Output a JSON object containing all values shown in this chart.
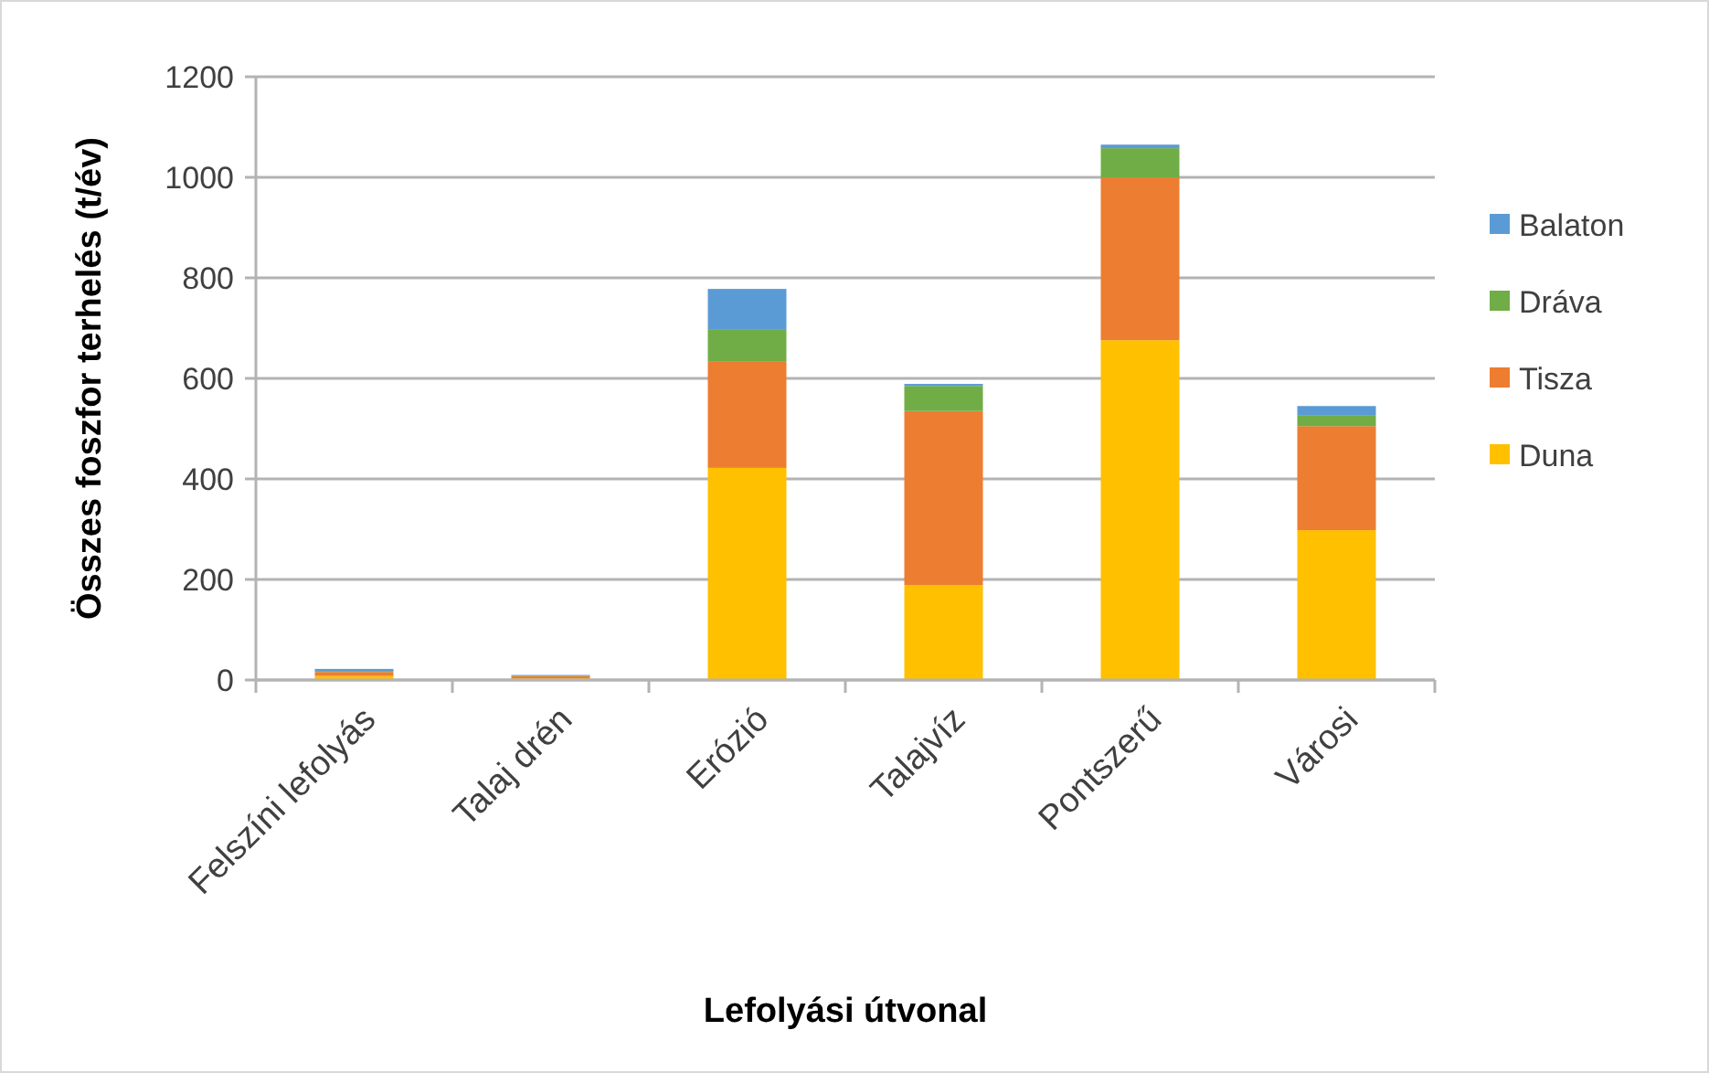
{
  "chart_data": {
    "type": "bar",
    "stacked": true,
    "xlabel": "Lefolyási útvonal",
    "ylabel": "Összes foszfor terhelés (t/év)",
    "categories": [
      "Felszíni lefolyás",
      "Talaj drén",
      "Erózió",
      "Talajvíz",
      "Pontszerű",
      "Városi"
    ],
    "series": [
      {
        "name": "Duna",
        "color": "#ffc000",
        "values": [
          8,
          3,
          422,
          189,
          676,
          298
        ]
      },
      {
        "name": "Tisza",
        "color": "#ed7d31",
        "values": [
          8,
          5,
          211,
          346,
          324,
          207
        ]
      },
      {
        "name": "Dráva",
        "color": "#70ad47",
        "values": [
          2,
          1,
          65,
          50,
          58,
          22
        ]
      },
      {
        "name": "Balaton",
        "color": "#5b9bd5",
        "values": [
          4,
          1,
          80,
          4,
          7,
          18
        ]
      }
    ],
    "ylim": [
      0,
      1200
    ],
    "yticks": [
      0,
      200,
      400,
      600,
      800,
      1000,
      1200
    ],
    "grid": "y",
    "legend": "right"
  }
}
